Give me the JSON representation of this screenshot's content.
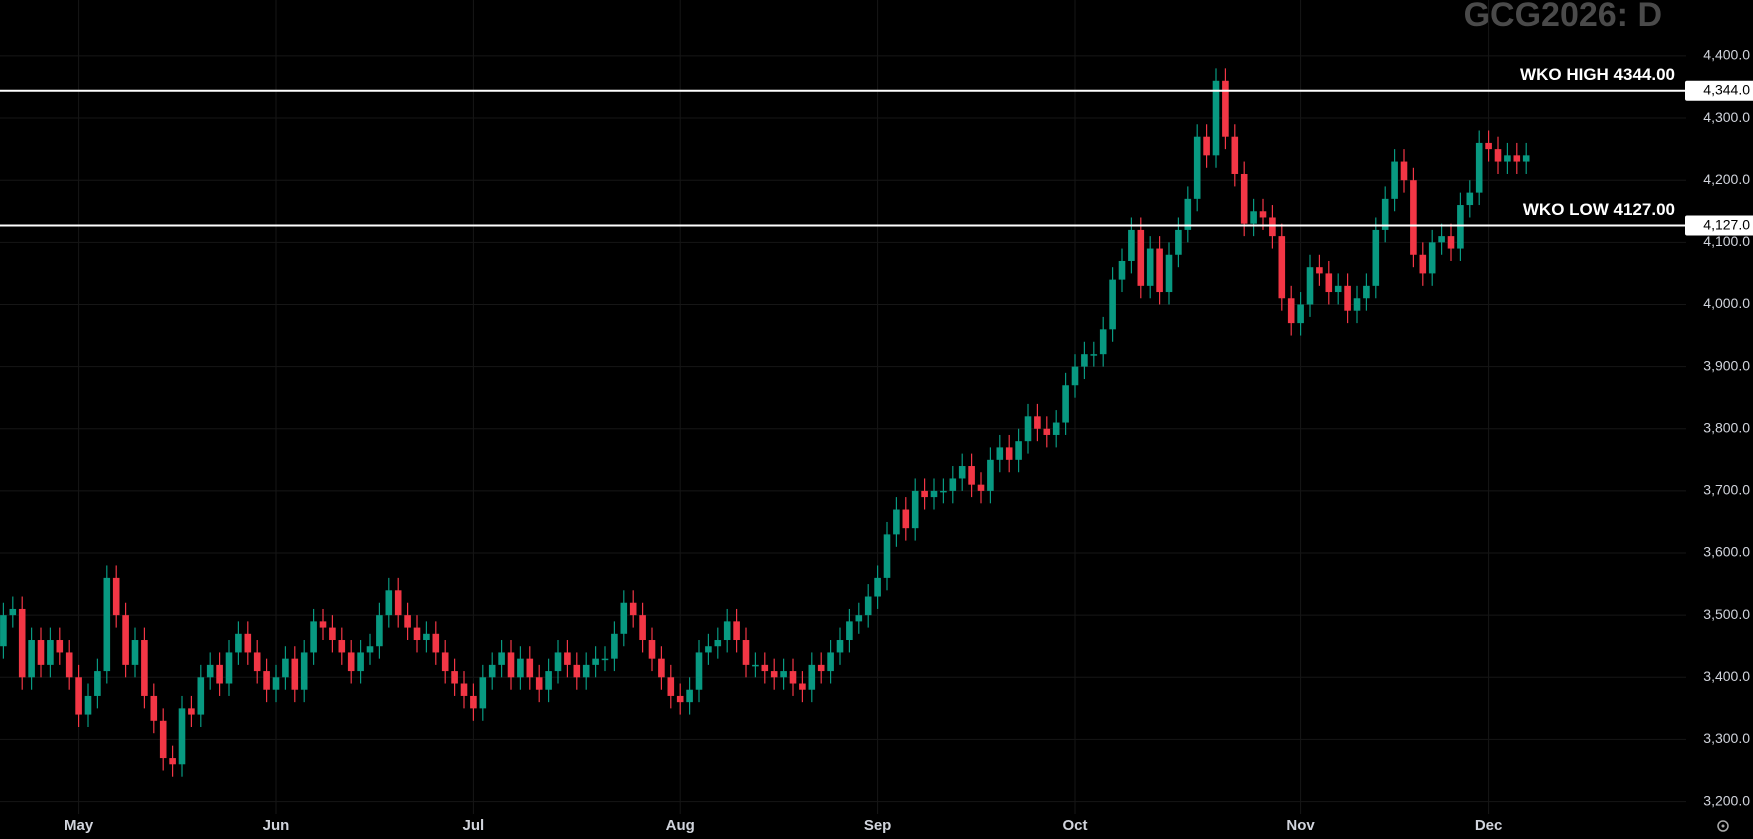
{
  "chart_data": {
    "type": "candlestick",
    "title": "GCG2026: D",
    "categories": [
      null,
      null,
      null,
      null,
      null,
      null,
      null,
      null,
      "May",
      null,
      null,
      null,
      null,
      null,
      null,
      null,
      null,
      null,
      null,
      null,
      null,
      null,
      null,
      null,
      null,
      null,
      null,
      null,
      null,
      "Jun",
      null,
      null,
      null,
      null,
      null,
      null,
      null,
      null,
      null,
      null,
      null,
      null,
      null,
      null,
      null,
      null,
      null,
      null,
      null,
      null,
      "Jul",
      null,
      null,
      null,
      null,
      null,
      null,
      null,
      null,
      null,
      null,
      null,
      null,
      null,
      null,
      null,
      null,
      null,
      null,
      null,
      null,
      null,
      "Aug",
      null,
      null,
      null,
      null,
      null,
      null,
      null,
      null,
      null,
      null,
      null,
      null,
      null,
      null,
      null,
      null,
      null,
      null,
      null,
      null,
      "Sep",
      null,
      null,
      null,
      null,
      null,
      null,
      null,
      null,
      null,
      null,
      null,
      null,
      null,
      null,
      null,
      null,
      null,
      null,
      null,
      null,
      "Oct",
      null,
      null,
      null,
      null,
      null,
      null,
      null,
      null,
      null,
      null,
      null,
      null,
      null,
      null,
      null,
      null,
      null,
      null,
      null,
      null,
      null,
      null,
      null,
      "Nov",
      null,
      null,
      null,
      null,
      null,
      null,
      null,
      null,
      null,
      null,
      null,
      null,
      null,
      null,
      null,
      null,
      null,
      null,
      null,
      "Dec",
      null,
      null,
      null,
      null
    ],
    "open": [
      3450,
      3500,
      3510,
      3400,
      3460,
      3420,
      3460,
      3440,
      3400,
      3340,
      3370,
      3410,
      3560,
      3500,
      3420,
      3460,
      3370,
      3330,
      3270,
      3260,
      3350,
      3340,
      3400,
      3420,
      3390,
      3440,
      3470,
      3440,
      3410,
      3380,
      3400,
      3430,
      3380,
      3440,
      3490,
      3480,
      3460,
      3440,
      3410,
      3440,
      3450,
      3500,
      3540,
      3500,
      3480,
      3460,
      3470,
      3440,
      3410,
      3390,
      3370,
      3350,
      3400,
      3420,
      3440,
      3400,
      3430,
      3400,
      3380,
      3410,
      3440,
      3420,
      3400,
      3420,
      3430,
      3430,
      3470,
      3520,
      3500,
      3460,
      3430,
      3400,
      3370,
      3360,
      3380,
      3440,
      3450,
      3460,
      3490,
      3460,
      3420,
      3420,
      3410,
      3400,
      3410,
      3390,
      3380,
      3420,
      3410,
      3440,
      3460,
      3490,
      3500,
      3530,
      3560,
      3630,
      3670,
      3640,
      3700,
      3690,
      3700,
      3700,
      3720,
      3740,
      3710,
      3700,
      3750,
      3770,
      3750,
      3780,
      3820,
      3800,
      3790,
      3810,
      3870,
      3900,
      3920,
      3920,
      3960,
      4040,
      4070,
      4120,
      4030,
      4090,
      4020,
      4080,
      4120,
      4170,
      4270,
      4240,
      4360,
      4270,
      4210,
      4130,
      4150,
      4140,
      4110,
      4010,
      3970,
      4000,
      4060,
      4050,
      4020,
      4030,
      3990,
      4010,
      4030,
      4120,
      4170,
      4230,
      4200,
      4080,
      4050,
      4100,
      4110,
      4090,
      4160,
      4180,
      4260,
      4250,
      4230,
      4240,
      4230
    ],
    "high": [
      3520,
      3530,
      3530,
      3480,
      3480,
      3480,
      3480,
      3460,
      3420,
      3390,
      3430,
      3580,
      3580,
      3520,
      3480,
      3480,
      3390,
      3350,
      3290,
      3370,
      3370,
      3420,
      3440,
      3440,
      3460,
      3490,
      3490,
      3460,
      3430,
      3420,
      3450,
      3450,
      3460,
      3510,
      3510,
      3500,
      3480,
      3460,
      3460,
      3470,
      3520,
      3560,
      3560,
      3520,
      3500,
      3490,
      3490,
      3460,
      3430,
      3410,
      3390,
      3420,
      3440,
      3460,
      3460,
      3450,
      3450,
      3420,
      3430,
      3460,
      3460,
      3440,
      3440,
      3450,
      3450,
      3490,
      3540,
      3540,
      3520,
      3480,
      3450,
      3420,
      3390,
      3400,
      3460,
      3470,
      3480,
      3510,
      3510,
      3480,
      3440,
      3440,
      3430,
      3430,
      3430,
      3410,
      3440,
      3440,
      3460,
      3480,
      3510,
      3520,
      3550,
      3580,
      3650,
      3690,
      3690,
      3720,
      3720,
      3720,
      3720,
      3740,
      3760,
      3760,
      3730,
      3770,
      3790,
      3790,
      3800,
      3840,
      3840,
      3820,
      3830,
      3890,
      3920,
      3940,
      3940,
      3980,
      4060,
      4090,
      4140,
      4140,
      4110,
      4110,
      4100,
      4140,
      4190,
      4290,
      4290,
      4380,
      4380,
      4290,
      4230,
      4170,
      4170,
      4160,
      4130,
      4030,
      4020,
      4080,
      4080,
      4070,
      4050,
      4050,
      4030,
      4050,
      4140,
      4190,
      4250,
      4250,
      4220,
      4100,
      4120,
      4130,
      4130,
      4180,
      4200,
      4280,
      4280,
      4270,
      4260,
      4260,
      4260
    ],
    "low": [
      3430,
      3480,
      3380,
      3380,
      3400,
      3400,
      3420,
      3380,
      3320,
      3320,
      3350,
      3390,
      3480,
      3400,
      3400,
      3350,
      3310,
      3250,
      3240,
      3240,
      3320,
      3320,
      3380,
      3370,
      3370,
      3420,
      3420,
      3390,
      3360,
      3360,
      3380,
      3360,
      3360,
      3420,
      3460,
      3440,
      3420,
      3390,
      3390,
      3420,
      3430,
      3480,
      3480,
      3460,
      3440,
      3440,
      3420,
      3390,
      3370,
      3350,
      3330,
      3330,
      3380,
      3400,
      3380,
      3380,
      3380,
      3360,
      3360,
      3390,
      3400,
      3380,
      3380,
      3400,
      3410,
      3410,
      3450,
      3480,
      3440,
      3410,
      3380,
      3350,
      3340,
      3340,
      3360,
      3420,
      3430,
      3440,
      3440,
      3400,
      3400,
      3390,
      3380,
      3380,
      3370,
      3360,
      3360,
      3390,
      3390,
      3420,
      3440,
      3470,
      3480,
      3510,
      3540,
      3610,
      3620,
      3620,
      3670,
      3670,
      3680,
      3680,
      3700,
      3690,
      3680,
      3680,
      3730,
      3730,
      3730,
      3760,
      3780,
      3770,
      3770,
      3790,
      3850,
      3880,
      3900,
      3900,
      3940,
      4020,
      4050,
      4010,
      4010,
      4000,
      4000,
      4060,
      4100,
      4150,
      4220,
      4220,
      4250,
      4190,
      4110,
      4110,
      4120,
      4090,
      3990,
      3950,
      3950,
      3980,
      4030,
      4000,
      4000,
      3970,
      3970,
      3990,
      4010,
      4100,
      4150,
      4180,
      4060,
      4030,
      4030,
      4080,
      4070,
      4070,
      4140,
      4160,
      4230,
      4210,
      4210,
      4210,
      4210
    ],
    "close": [
      3500,
      3510,
      3400,
      3460,
      3420,
      3460,
      3440,
      3400,
      3340,
      3370,
      3410,
      3560,
      3500,
      3420,
      3460,
      3370,
      3330,
      3270,
      3260,
      3350,
      3340,
      3400,
      3420,
      3390,
      3440,
      3470,
      3440,
      3410,
      3380,
      3400,
      3430,
      3380,
      3440,
      3490,
      3480,
      3460,
      3440,
      3410,
      3440,
      3450,
      3500,
      3540,
      3500,
      3480,
      3460,
      3470,
      3440,
      3410,
      3390,
      3370,
      3350,
      3400,
      3420,
      3440,
      3400,
      3430,
      3400,
      3380,
      3410,
      3440,
      3420,
      3400,
      3420,
      3430,
      3430,
      3470,
      3520,
      3500,
      3460,
      3430,
      3400,
      3370,
      3360,
      3380,
      3440,
      3450,
      3460,
      3490,
      3460,
      3420,
      3420,
      3410,
      3400,
      3410,
      3390,
      3380,
      3420,
      3410,
      3440,
      3460,
      3490,
      3500,
      3530,
      3560,
      3630,
      3670,
      3640,
      3700,
      3690,
      3700,
      3700,
      3720,
      3740,
      3710,
      3700,
      3750,
      3770,
      3750,
      3780,
      3820,
      3800,
      3790,
      3810,
      3870,
      3900,
      3920,
      3920,
      3960,
      4040,
      4070,
      4120,
      4030,
      4090,
      4020,
      4080,
      4120,
      4170,
      4270,
      4240,
      4360,
      4270,
      4210,
      4130,
      4150,
      4140,
      4110,
      4010,
      3970,
      4000,
      4060,
      4050,
      4020,
      4030,
      3990,
      4010,
      4030,
      4120,
      4170,
      4230,
      4200,
      4080,
      4050,
      4100,
      4110,
      4090,
      4160,
      4180,
      4260,
      4250,
      4230,
      4240,
      4230,
      4240
    ],
    "up_color": "#089981",
    "down_color": "#f23645",
    "ylim": [
      3180,
      4490
    ],
    "yticks": [
      {
        "value": 3200,
        "label": "3,200.0"
      },
      {
        "value": 3300,
        "label": "3,300.0"
      },
      {
        "value": 3400,
        "label": "3,400.0"
      },
      {
        "value": 3500,
        "label": "3,500.0"
      },
      {
        "value": 3600,
        "label": "3,600.0"
      },
      {
        "value": 3700,
        "label": "3,700.0"
      },
      {
        "value": 3800,
        "label": "3,800.0"
      },
      {
        "value": 3900,
        "label": "3,900.0"
      },
      {
        "value": 4000,
        "label": "4,000.0"
      },
      {
        "value": 4100,
        "label": "4,100.0"
      },
      {
        "value": 4200,
        "label": "4,200.0"
      },
      {
        "value": 4300,
        "label": "4,300.0"
      },
      {
        "value": 4400,
        "label": "4,400.0"
      }
    ],
    "grid": true,
    "levels": [
      {
        "label": "WKO HIGH 4344.00",
        "value": 4344,
        "axis_label": "4,344.0",
        "color": "#ffffff"
      },
      {
        "label": "WKO LOW 4127.00",
        "value": 4127,
        "axis_label": "4,127.0",
        "color": "#ffffff"
      }
    ]
  }
}
